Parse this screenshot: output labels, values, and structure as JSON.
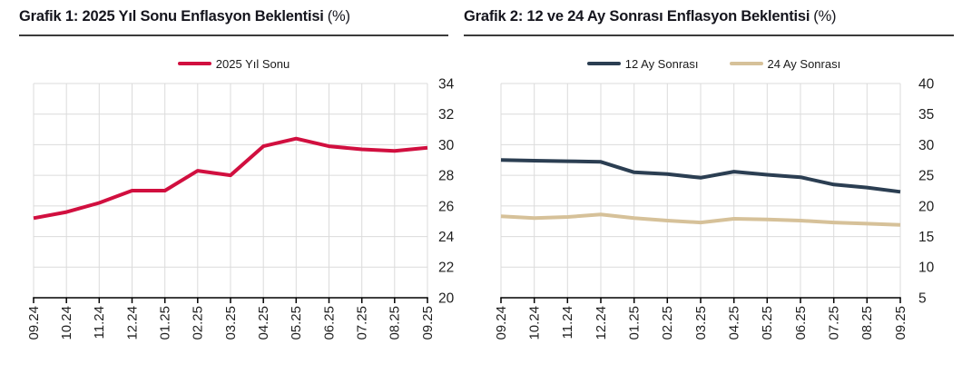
{
  "charts": [
    {
      "title_main": "Grafik 1: 2025 Yıl Sonu Enflasyon Beklentisi",
      "title_unit": "(%)"
    },
    {
      "title_main": "Grafik 2: 12 ve 24 Ay Sonrası Enflasyon Beklentisi",
      "title_unit": "(%)"
    }
  ],
  "theme": {
    "grid_color": "#dbdbdb",
    "axis_color": "#000000",
    "tick_label_color": "#1f1f1f",
    "title_color": "#15151d",
    "rule_color": "#3b3b3b",
    "background": "#ffffff"
  },
  "chart_data": [
    {
      "type": "line",
      "title": "Grafik 1: 2025 Yıl Sonu Enflasyon Beklentisi (%)",
      "xlabel": "",
      "ylabel": "",
      "categories": [
        "09.24",
        "10.24",
        "11.24",
        "12.24",
        "01.25",
        "02.25",
        "03.25",
        "04.25",
        "05.25",
        "06.25",
        "07.25",
        "08.25",
        "09.25"
      ],
      "series": [
        {
          "name": "2025 Yıl Sonu",
          "color": "#d10f3f",
          "values": [
            25.2,
            25.6,
            26.2,
            27.0,
            27.0,
            28.3,
            28.0,
            29.9,
            30.4,
            29.9,
            29.7,
            29.6,
            29.8
          ]
        }
      ],
      "ylim": [
        20,
        34
      ],
      "ytick_step": 2,
      "yticks": [
        20,
        22,
        24,
        26,
        28,
        30,
        32,
        34
      ],
      "yaxis_side": "right",
      "grid": true,
      "legend_position": "top",
      "xtick_rotation": 90,
      "line_width": 4
    },
    {
      "type": "line",
      "title": "Grafik 2: 12 ve 24 Ay Sonrası Enflasyon Beklentisi (%)",
      "xlabel": "",
      "ylabel": "",
      "categories": [
        "09.24",
        "10.24",
        "11.24",
        "12.24",
        "01.25",
        "02.25",
        "03.25",
        "04.25",
        "05.25",
        "06.25",
        "07.25",
        "08.25",
        "09.25"
      ],
      "series": [
        {
          "name": "12 Ay Sonrası",
          "color": "#2b3e52",
          "values": [
            27.5,
            27.4,
            27.3,
            27.2,
            25.5,
            25.2,
            24.6,
            25.6,
            25.1,
            24.7,
            23.5,
            23.0,
            22.3
          ]
        },
        {
          "name": "24 Ay Sonrası",
          "color": "#d6c199",
          "values": [
            18.3,
            18.0,
            18.2,
            18.6,
            18.0,
            17.6,
            17.3,
            17.9,
            17.8,
            17.6,
            17.3,
            17.1,
            16.9
          ]
        }
      ],
      "ylim": [
        5,
        40
      ],
      "ytick_step": 5,
      "yticks": [
        5,
        10,
        15,
        20,
        25,
        30,
        35,
        40
      ],
      "yaxis_side": "right",
      "grid": true,
      "legend_position": "top",
      "xtick_rotation": 90,
      "line_width": 4
    }
  ]
}
